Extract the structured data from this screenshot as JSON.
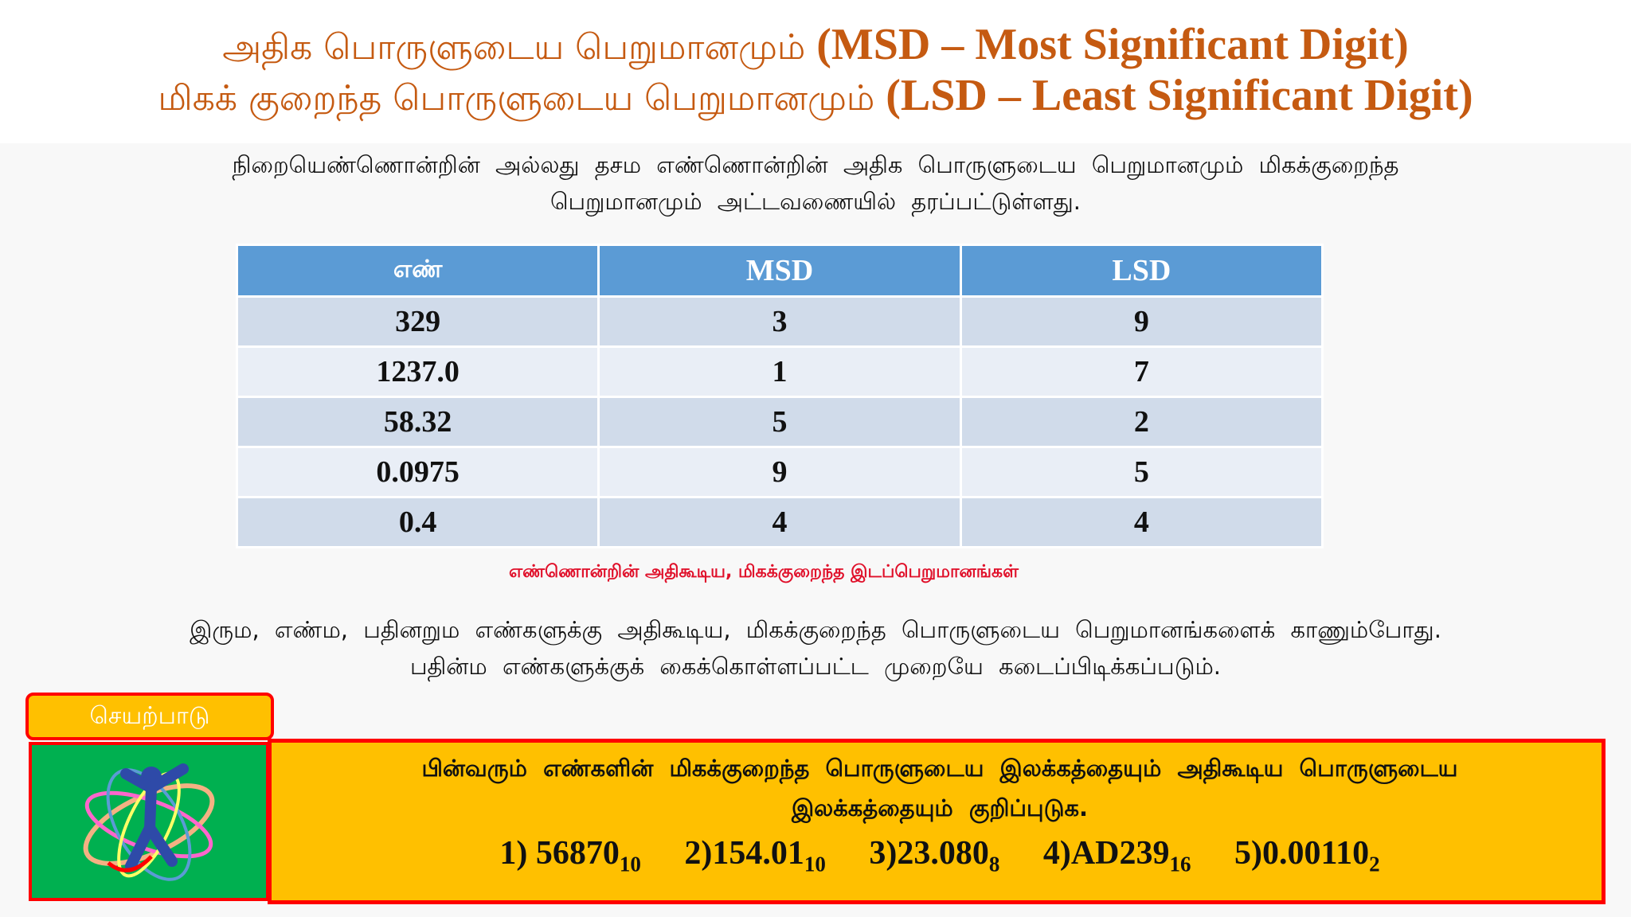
{
  "title": {
    "line1_tamil": "அதிக பொருளுடைய பெறுமானமும்",
    "line1_english": "(MSD – Most Significant Digit)",
    "line2_tamil": "மிகக் குறைந்த பொருளுடைய பெறுமானமும்",
    "line2_english": "(LSD – Least Significant Digit)"
  },
  "intro": {
    "line1": "நிறையெண்ணொன்றின் அல்லது தசம எண்ணொன்றின் அதிக பொருளுடைய பெறுமானமும் மிகக்குறைந்த",
    "line2": "பெறுமானமும் அட்டவணையில் தரப்பட்டுள்ளது."
  },
  "table": {
    "headers": [
      "எண்",
      "MSD",
      "LSD"
    ],
    "rows": [
      [
        "329",
        "3",
        "9"
      ],
      [
        "1237.0",
        "1",
        "7"
      ],
      [
        "58.32",
        "5",
        "2"
      ],
      [
        "0.0975",
        "9",
        "5"
      ],
      [
        "0.4",
        "4",
        "4"
      ]
    ],
    "caption": "எண்ணொன்றின் அதிகூடிய, மிகக்குறைந்த இடப்பெறுமானங்கள்"
  },
  "note": {
    "line1": "இரும, எண்ம, பதினறும எண்களுக்கு அதிகூடிய, மிகக்குறைந்த பொருளுடைய பெறுமானங்களைக் காணும்போது.",
    "line2": "பதின்ம எண்களுக்குக் கைக்கொள்ளப்பட்ட முறையே கடைப்பிடிக்கப்படும்."
  },
  "activity": {
    "label": "செயற்பாடு",
    "icon": "dancing-figure-icon",
    "line1": "பின்வரும் எண்களின் மிகக்குறைந்த பொருளுடைய இலக்கத்தையும் அதிகூடிய பொருளுடைய",
    "line2": "இலக்கத்தையும் குறிப்புடுக.",
    "exercises": [
      {
        "prefix": "1) ",
        "number": "56870",
        "base": "10"
      },
      {
        "prefix": "2)",
        "number": "154.01",
        "base": "10"
      },
      {
        "prefix": "3)",
        "number": "23.080",
        "base": "8"
      },
      {
        "prefix": "4)",
        "number": "AD239",
        "base": "16"
      },
      {
        "prefix": "5)",
        "number": "0.00110",
        "base": "2"
      }
    ]
  },
  "colors": {
    "title": "#c55a11",
    "table_header": "#5b9bd5",
    "caption": "#e0102a",
    "activity_fill": "#ffc000",
    "activity_border": "#ff0000",
    "icon_bg": "#00b050"
  }
}
